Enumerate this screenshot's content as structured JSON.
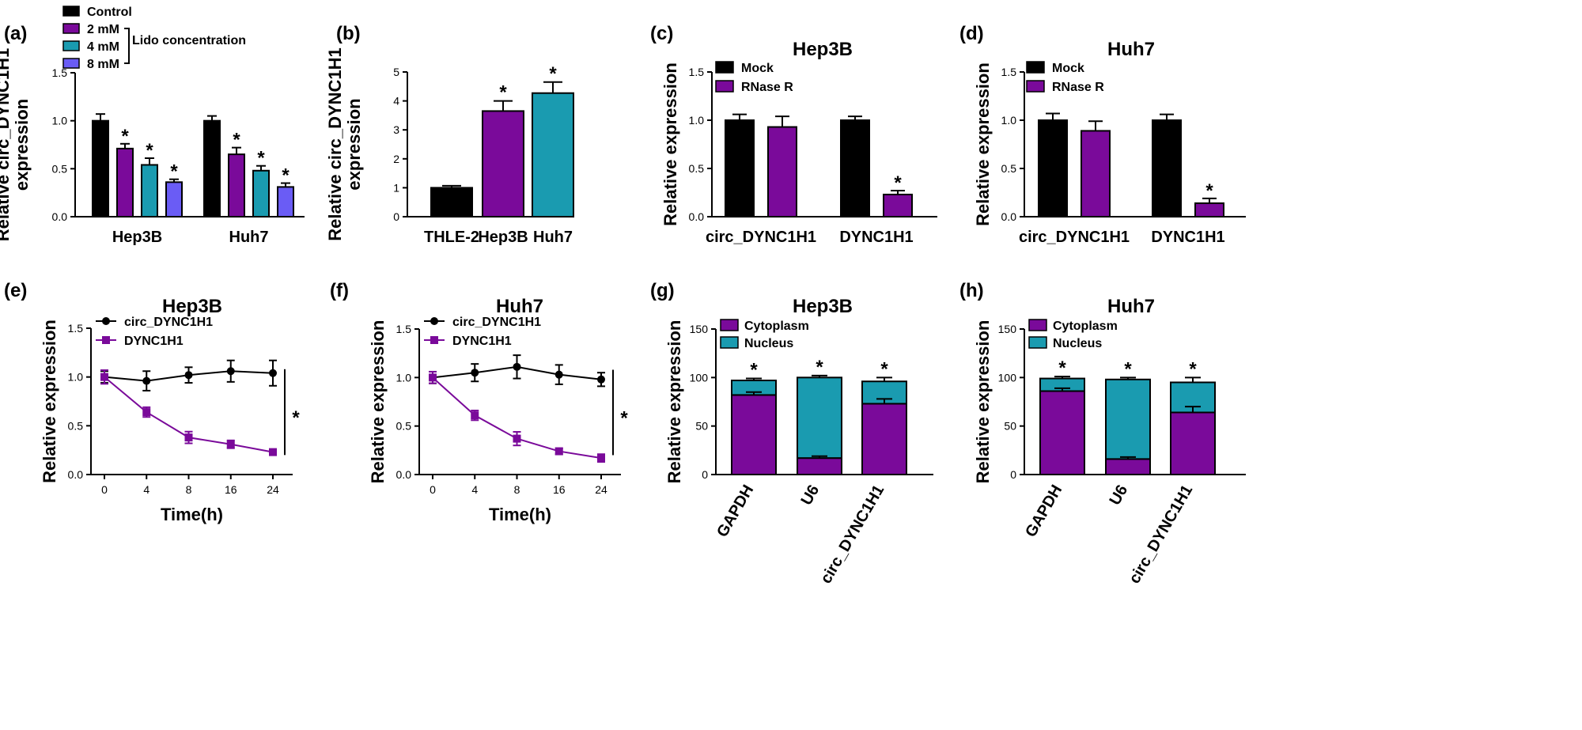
{
  "colors": {
    "black": "#000000",
    "purple": "#7a0a9a",
    "teal": "#1a9bb0",
    "blue": "#6a5cf5",
    "cytoplasm": "#7a0a9a",
    "nucleus": "#1a9bb0"
  },
  "chart_data": [
    {
      "panel": "(a)",
      "type": "bar",
      "title": "",
      "ylabel": [
        "Relative circ_DYNC1H1",
        "expression"
      ],
      "xlabel": "",
      "ylim": [
        0,
        1.5
      ],
      "yticks": [
        "0.0",
        "0.5",
        "1.0",
        "1.5"
      ],
      "categories": [
        "Hep3B",
        "Huh7"
      ],
      "legend_note": "Lido concentration",
      "series": [
        {
          "name": "Control",
          "values": [
            1.0,
            1.0
          ],
          "errors": [
            0.07,
            0.05
          ],
          "star": [
            false,
            false
          ]
        },
        {
          "name": "2 mM",
          "values": [
            0.71,
            0.65
          ],
          "errors": [
            0.05,
            0.07
          ],
          "star": [
            true,
            true
          ]
        },
        {
          "name": "4 mM",
          "values": [
            0.54,
            0.48
          ],
          "errors": [
            0.07,
            0.05
          ],
          "star": [
            true,
            true
          ]
        },
        {
          "name": "8 mM",
          "values": [
            0.36,
            0.31
          ],
          "errors": [
            0.03,
            0.04
          ],
          "star": [
            true,
            true
          ]
        }
      ]
    },
    {
      "panel": "(b)",
      "type": "bar",
      "title": "",
      "ylabel": [
        "Relative circ_DYNC1H1",
        "expression"
      ],
      "xlabel": "",
      "ylim": [
        0,
        5
      ],
      "yticks": [
        "0",
        "1",
        "2",
        "3",
        "4",
        "5"
      ],
      "categories": [
        "THLE-2",
        "Hep3B",
        "Huh7"
      ],
      "values": [
        1.0,
        3.65,
        4.27
      ],
      "errors": [
        0.07,
        0.35,
        0.38
      ],
      "star": [
        false,
        true,
        true
      ]
    },
    {
      "panel": "(c)",
      "type": "bar",
      "title": "Hep3B",
      "ylabel": [
        "Relative expression"
      ],
      "xlabel": "",
      "ylim": [
        0,
        1.5
      ],
      "yticks": [
        "0.0",
        "0.5",
        "1.0",
        "1.5"
      ],
      "categories": [
        "circ_DYNC1H1",
        "DYNC1H1"
      ],
      "series": [
        {
          "name": "Mock",
          "values": [
            1.0,
            1.0
          ],
          "errors": [
            0.06,
            0.04
          ],
          "star": [
            false,
            false
          ]
        },
        {
          "name": "RNase R",
          "values": [
            0.93,
            0.23
          ],
          "errors": [
            0.11,
            0.04
          ],
          "star": [
            false,
            true
          ]
        }
      ]
    },
    {
      "panel": "(d)",
      "type": "bar",
      "title": "Huh7",
      "ylabel": [
        "Relative expression"
      ],
      "xlabel": "",
      "ylim": [
        0,
        1.5
      ],
      "yticks": [
        "0.0",
        "0.5",
        "1.0",
        "1.5"
      ],
      "categories": [
        "circ_DYNC1H1",
        "DYNC1H1"
      ],
      "series": [
        {
          "name": "Mock",
          "values": [
            1.0,
            1.0
          ],
          "errors": [
            0.07,
            0.06
          ],
          "star": [
            false,
            false
          ]
        },
        {
          "name": "RNase R",
          "values": [
            0.89,
            0.14
          ],
          "errors": [
            0.1,
            0.05
          ],
          "star": [
            false,
            true
          ]
        }
      ]
    },
    {
      "panel": "(e)",
      "type": "line",
      "title": "Hep3B",
      "ylabel": [
        "Relative expression"
      ],
      "xlabel": "Time(h)",
      "ylim": [
        0,
        1.5
      ],
      "yticks": [
        "0.0",
        "0.5",
        "1.0",
        "1.5"
      ],
      "categories": [
        "0",
        "4",
        "8",
        "16",
        "24"
      ],
      "significance": "*",
      "series": [
        {
          "name": "circ_DYNC1H1",
          "marker": "circle",
          "values": [
            1.0,
            0.96,
            1.02,
            1.06,
            1.04
          ],
          "errors": [
            0.06,
            0.1,
            0.08,
            0.11,
            0.13
          ]
        },
        {
          "name": "DYNC1H1",
          "marker": "square",
          "values": [
            1.0,
            0.64,
            0.38,
            0.31,
            0.23
          ],
          "errors": [
            0.07,
            0.05,
            0.06,
            0.04,
            0.03
          ]
        }
      ]
    },
    {
      "panel": "(f)",
      "type": "line",
      "title": "Huh7",
      "ylabel": [
        "Relative expression"
      ],
      "xlabel": "Time(h)",
      "ylim": [
        0,
        1.5
      ],
      "yticks": [
        "0.0",
        "0.5",
        "1.0",
        "1.5"
      ],
      "categories": [
        "0",
        "4",
        "8",
        "16",
        "24"
      ],
      "significance": "*",
      "series": [
        {
          "name": "circ_DYNC1H1",
          "marker": "circle",
          "values": [
            1.0,
            1.05,
            1.11,
            1.03,
            0.98
          ],
          "errors": [
            0.06,
            0.09,
            0.12,
            0.1,
            0.07
          ]
        },
        {
          "name": "DYNC1H1",
          "marker": "square",
          "values": [
            1.0,
            0.61,
            0.37,
            0.24,
            0.17
          ],
          "errors": [
            0.06,
            0.05,
            0.07,
            0.03,
            0.04
          ]
        }
      ]
    },
    {
      "panel": "(g)",
      "type": "bar",
      "stacked": true,
      "title": "Hep3B",
      "ylabel": [
        "Relative expression"
      ],
      "xlabel": "",
      "ylim": [
        0,
        150
      ],
      "yticks": [
        "0",
        "50",
        "100",
        "150"
      ],
      "categories": [
        "GAPDH",
        "U6",
        "circ_DYNC1H1"
      ],
      "series": [
        {
          "name": "Cytoplasm",
          "values": [
            82,
            17,
            73
          ],
          "errors": [
            3,
            2,
            5
          ]
        },
        {
          "name": "Nucleus",
          "values": [
            15,
            83,
            23
          ],
          "errors": [
            2,
            2,
            4
          ]
        }
      ],
      "star": [
        true,
        true,
        true
      ]
    },
    {
      "panel": "(h)",
      "type": "bar",
      "stacked": true,
      "title": "Huh7",
      "ylabel": [
        "Relative expression"
      ],
      "xlabel": "",
      "ylim": [
        0,
        150
      ],
      "yticks": [
        "0",
        "50",
        "100",
        "150"
      ],
      "categories": [
        "GAPDH",
        "U6",
        "circ_DYNC1H1"
      ],
      "series": [
        {
          "name": "Cytoplasm",
          "values": [
            86,
            16,
            64
          ],
          "errors": [
            3,
            2,
            6
          ]
        },
        {
          "name": "Nucleus",
          "values": [
            13,
            82,
            31
          ],
          "errors": [
            2,
            2,
            5
          ]
        }
      ],
      "star": [
        true,
        true,
        true
      ]
    }
  ]
}
